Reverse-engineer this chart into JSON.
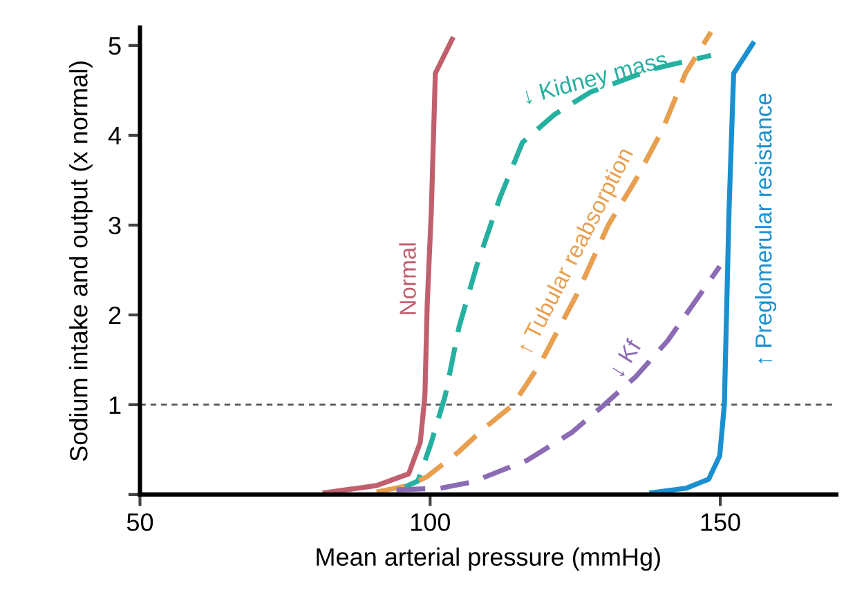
{
  "chart_data": {
    "type": "line",
    "xlabel": "Mean arterial pressure (mmHg)",
    "ylabel": "Sodium intake and output (x normal)",
    "xlim": [
      50,
      170
    ],
    "xticks": [
      50,
      100,
      150
    ],
    "ylim": [
      0,
      5.2
    ],
    "yticks": [
      {
        "value": 0,
        "label": null
      },
      1,
      2,
      3,
      4,
      5
    ],
    "grid": false,
    "legend": false,
    "marker": "none",
    "ref_lines": [
      {
        "axis": "y",
        "value": 1,
        "color": "#555555",
        "line_style": "dashed"
      }
    ],
    "series": [
      {
        "name": "Normal",
        "color": "#c0606e",
        "line_style": "solid",
        "x": [
          81.9,
          90.8,
          96.3,
          98.3,
          99.1,
          99.5,
          100.2,
          100.9,
          103.8
        ],
        "values": [
          0.02,
          0.1,
          0.23,
          0.58,
          1.1,
          2.12,
          3.15,
          4.69,
          5.07
        ]
      },
      {
        "name": "↓ Kidney mass",
        "color": "#26b0a0",
        "line_style": "dashed",
        "x": [
          95.5,
          97.9,
          100.2,
          102.6,
          105.0,
          108.0,
          112.0,
          115.9,
          121.4,
          127.6,
          138.5,
          148.4
        ],
        "values": [
          0.08,
          0.15,
          0.58,
          1.1,
          1.87,
          2.54,
          3.3,
          3.92,
          4.23,
          4.48,
          4.74,
          4.89
        ]
      },
      {
        "name": "↑ Tubular reabsorption",
        "color": "#e8a050",
        "line_style": "dashed",
        "x": [
          90.1,
          96.3,
          99.5,
          105.0,
          109.0,
          114.3,
          119.0,
          125.3,
          130.7,
          135.4,
          140.1,
          144.0,
          148.4
        ],
        "values": [
          0.02,
          0.1,
          0.2,
          0.48,
          0.72,
          1.0,
          1.46,
          2.23,
          3.0,
          3.5,
          4.07,
          4.69,
          5.15
        ]
      },
      {
        "name": "↓ Kf",
        "color": "#8c6bb5",
        "line_style": "dashed",
        "x": [
          93.2,
          101.8,
          107.3,
          116.7,
          124.4,
          130.0,
          135.4,
          140.9,
          149.9
        ],
        "values": [
          0.05,
          0.07,
          0.14,
          0.38,
          0.69,
          1.0,
          1.31,
          1.71,
          2.54
        ]
      },
      {
        "name": "↑ Preglomerular resistance",
        "color": "#1a90d0",
        "line_style": "solid",
        "x": [
          138.2,
          144.1,
          148.0,
          149.9,
          150.7,
          151.5,
          152.3,
          155.6
        ],
        "values": [
          0.02,
          0.07,
          0.17,
          0.43,
          1.0,
          3.15,
          4.69,
          5.02
        ]
      }
    ]
  }
}
